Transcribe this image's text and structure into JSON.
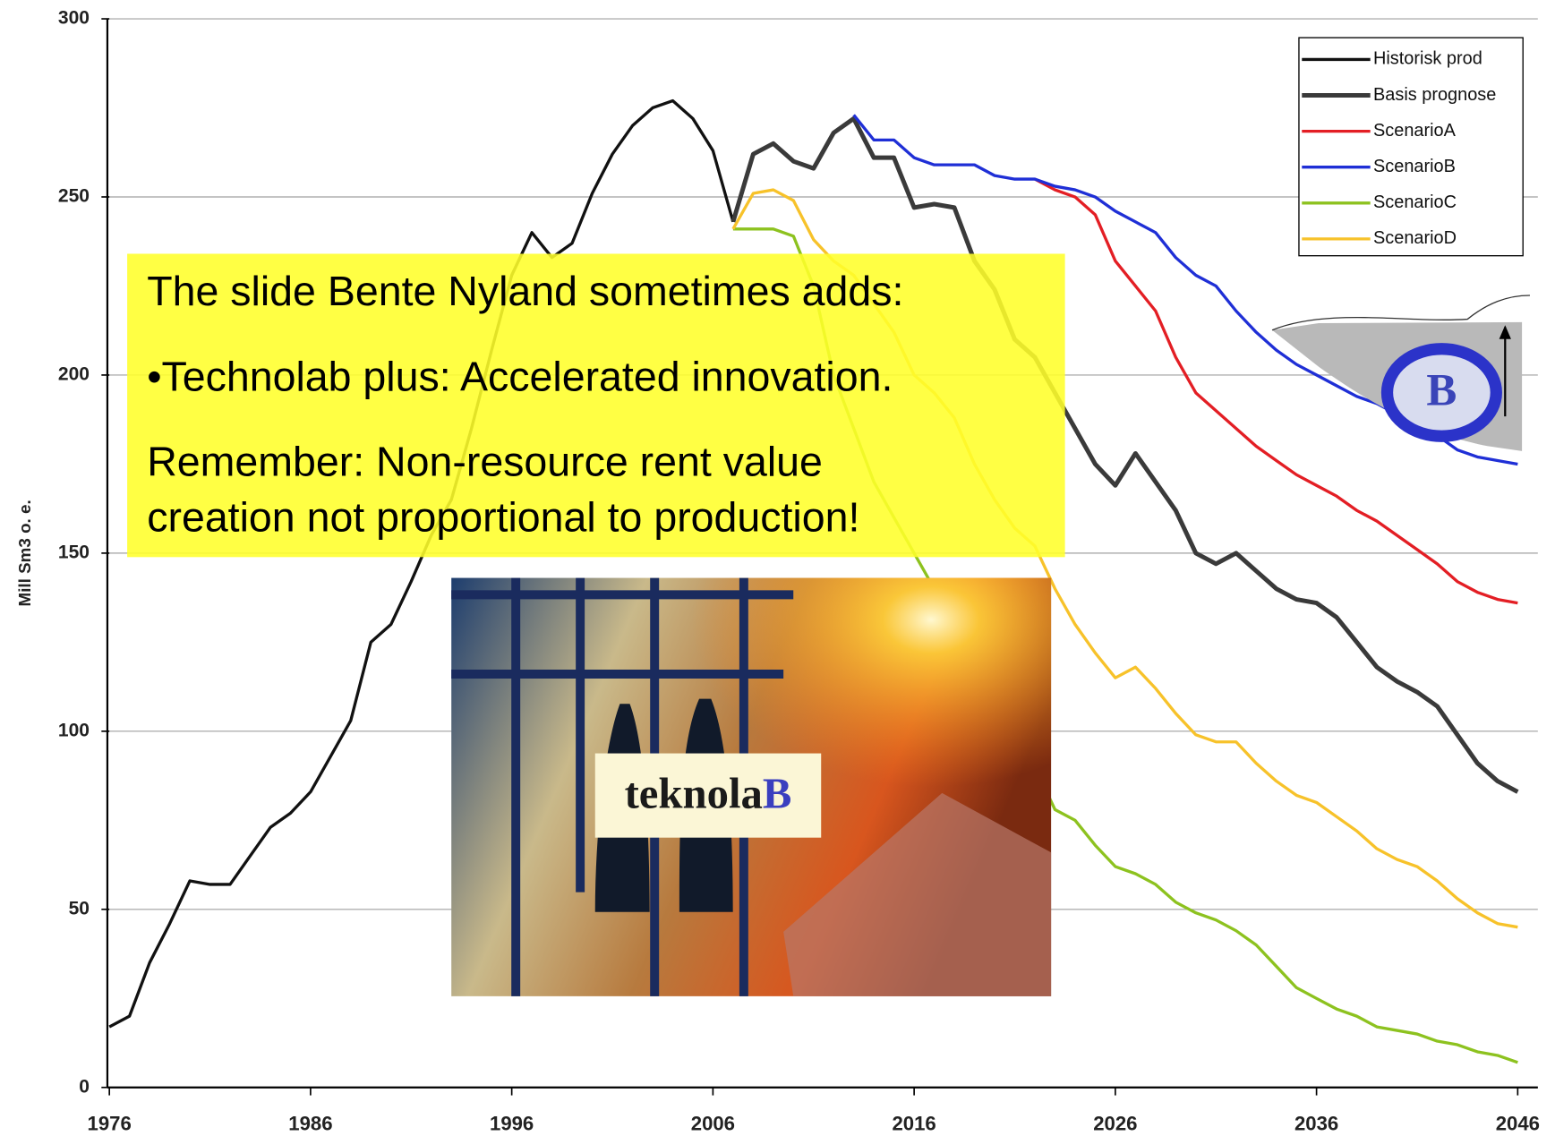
{
  "chart_data": {
    "type": "line",
    "y_label": "Mill Sm3 o. e.",
    "x": [
      1976,
      1977,
      1978,
      1979,
      1980,
      1981,
      1982,
      1983,
      1984,
      1985,
      1986,
      1987,
      1988,
      1989,
      1990,
      1991,
      1992,
      1993,
      1994,
      1995,
      1996,
      1997,
      1998,
      1999,
      2000,
      2001,
      2002,
      2003,
      2004,
      2005,
      2006,
      2007,
      2008,
      2009,
      2010,
      2011,
      2012,
      2013,
      2014,
      2015,
      2016,
      2017,
      2018,
      2019,
      2020,
      2021,
      2022,
      2023,
      2024,
      2025,
      2026,
      2027,
      2028,
      2029,
      2030,
      2031,
      2032,
      2033,
      2034,
      2035,
      2036,
      2037,
      2038,
      2039,
      2040,
      2041,
      2042,
      2043,
      2044,
      2045,
      2046
    ],
    "xlim": [
      1976,
      2047
    ],
    "xticks": [
      1976,
      1986,
      1996,
      2006,
      2016,
      2026,
      2036,
      2046
    ],
    "ylim": [
      0,
      300
    ],
    "yticks": [
      0,
      50,
      100,
      150,
      200,
      250,
      300
    ],
    "grid": true,
    "legend": "upper right",
    "series": [
      {
        "name": "Historisk prod",
        "color": "#111111",
        "width": 3,
        "values": [
          17,
          20,
          35,
          46,
          58,
          57,
          57,
          65,
          73,
          77,
          83,
          93,
          103,
          125,
          130,
          142,
          155,
          165,
          185,
          207,
          228,
          240,
          233,
          237,
          251,
          262,
          270,
          275,
          277,
          272,
          263,
          243,
          null,
          null,
          null,
          null,
          null,
          null,
          null,
          null,
          null,
          null,
          null,
          null,
          null,
          null,
          null,
          null,
          null,
          null,
          null,
          null,
          null,
          null,
          null,
          null,
          null,
          null,
          null,
          null,
          null,
          null,
          null,
          null,
          null,
          null,
          null,
          null,
          null,
          null,
          null
        ]
      },
      {
        "name": "Basis prognose",
        "color": "#3a3a3a",
        "width": 4.5,
        "values": [
          null,
          null,
          null,
          null,
          null,
          null,
          null,
          null,
          null,
          null,
          null,
          null,
          null,
          null,
          null,
          null,
          null,
          null,
          null,
          null,
          null,
          null,
          null,
          null,
          null,
          null,
          null,
          null,
          null,
          null,
          null,
          243,
          262,
          265,
          260,
          258,
          268,
          272,
          261,
          261,
          247,
          248,
          247,
          232,
          224,
          210,
          205,
          195,
          185,
          175,
          169,
          178,
          170,
          162,
          150,
          147,
          150,
          145,
          140,
          137,
          136,
          132,
          125,
          118,
          114,
          111,
          107,
          99,
          91,
          86,
          83
        ]
      },
      {
        "name": "ScenarioA",
        "color": "#e31e24",
        "width": 3,
        "values": [
          null,
          null,
          null,
          null,
          null,
          null,
          null,
          null,
          null,
          null,
          null,
          null,
          null,
          null,
          null,
          null,
          null,
          null,
          null,
          null,
          null,
          null,
          null,
          null,
          null,
          null,
          null,
          null,
          null,
          null,
          null,
          null,
          null,
          null,
          null,
          null,
          null,
          null,
          null,
          null,
          null,
          null,
          null,
          null,
          null,
          null,
          255,
          252,
          250,
          245,
          232,
          225,
          218,
          205,
          195,
          190,
          185,
          180,
          176,
          172,
          169,
          166,
          162,
          159,
          155,
          151,
          147,
          142,
          139,
          137,
          136
        ]
      },
      {
        "name": "ScenarioB",
        "color": "#1f2fd6",
        "width": 3,
        "values": [
          null,
          null,
          null,
          null,
          null,
          null,
          null,
          null,
          null,
          null,
          null,
          null,
          null,
          null,
          null,
          null,
          null,
          null,
          null,
          null,
          null,
          null,
          null,
          null,
          null,
          null,
          null,
          null,
          null,
          null,
          null,
          null,
          null,
          null,
          null,
          null,
          null,
          273,
          266,
          266,
          261,
          259,
          259,
          259,
          256,
          255,
          255,
          253,
          252,
          250,
          246,
          243,
          240,
          233,
          228,
          225,
          218,
          212,
          207,
          203,
          200,
          197,
          194,
          192,
          189,
          186,
          183,
          179,
          177,
          176,
          175
        ]
      },
      {
        "name": "ScenarioC",
        "color": "#8dc21f",
        "width": 3,
        "values": [
          null,
          null,
          null,
          null,
          null,
          null,
          null,
          null,
          null,
          null,
          null,
          null,
          null,
          null,
          null,
          null,
          null,
          null,
          null,
          null,
          null,
          null,
          null,
          null,
          null,
          null,
          null,
          null,
          null,
          null,
          null,
          241,
          241,
          241,
          239,
          225,
          200,
          185,
          170,
          160,
          150,
          140,
          130,
          120,
          110,
          100,
          90,
          78,
          75,
          68,
          62,
          60,
          57,
          52,
          49,
          47,
          44,
          40,
          34,
          28,
          25,
          22,
          20,
          17,
          16,
          15,
          13,
          12,
          10,
          9,
          7
        ]
      },
      {
        "name": "ScenarioD",
        "color": "#f7c22a",
        "width": 3,
        "values": [
          null,
          null,
          null,
          null,
          null,
          null,
          null,
          null,
          null,
          null,
          null,
          null,
          null,
          null,
          null,
          null,
          null,
          null,
          null,
          null,
          null,
          null,
          null,
          null,
          null,
          null,
          null,
          null,
          null,
          null,
          null,
          241,
          251,
          252,
          249,
          238,
          232,
          228,
          220,
          212,
          200,
          195,
          188,
          175,
          165,
          157,
          152,
          140,
          130,
          122,
          115,
          118,
          112,
          105,
          99,
          97,
          97,
          91,
          86,
          82,
          80,
          76,
          72,
          67,
          64,
          62,
          58,
          53,
          49,
          46,
          45
        ]
      }
    ],
    "annotations": [
      "The slide Bente Nyland sometimes adds:",
      "•Technolab plus: Accelerated innovation.",
      "Remember: Non-resource rent value",
      "creation not proportional to production!"
    ],
    "image_caption": [
      "teknola",
      "B"
    ],
    "logo_text": "B"
  }
}
